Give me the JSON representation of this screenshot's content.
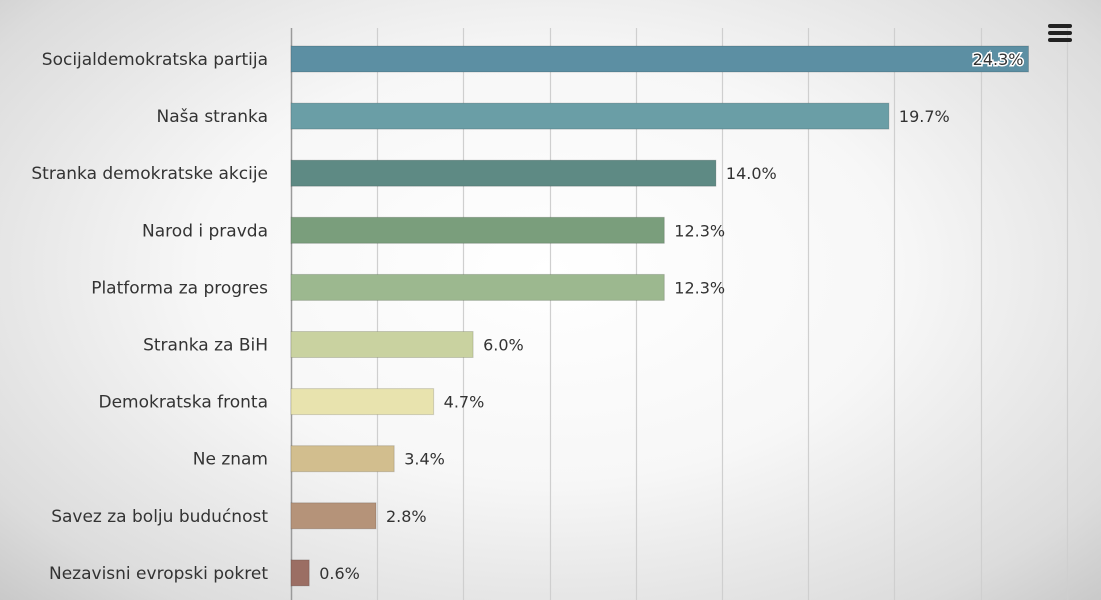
{
  "chart_data": {
    "type": "bar",
    "orientation": "horizontal",
    "categories": [
      "Socijaldemokratska partija",
      "Naša stranka",
      "Stranka demokratske akcije",
      "Narod i pravda",
      "Platforma za progres",
      "Stranka za BiH",
      "Demokratska fronta",
      "Ne znam",
      "Savez za bolju budućnost",
      "Nezavisni evropski pokret"
    ],
    "values": [
      24.3,
      19.7,
      14.0,
      12.3,
      12.3,
      6.0,
      4.7,
      3.4,
      2.8,
      0.6
    ],
    "labels": [
      "24.3%",
      "19.7%",
      "14.0%",
      "12.3%",
      "12.3%",
      "6.0%",
      "4.7%",
      "3.4%",
      "2.8%",
      "0.6%"
    ],
    "colors": [
      "#5c8fa3",
      "#6a9ea6",
      "#5e8a84",
      "#7a9e7c",
      "#9cb88f",
      "#c9d2a0",
      "#e8e3ae",
      "#d2be8e",
      "#b59379",
      "#9b6e64"
    ],
    "xlim": [
      0,
      27.5
    ],
    "grid": true,
    "gridline_color": "#cfcfcf"
  },
  "menu": {
    "icon": "hamburger-menu-icon"
  }
}
